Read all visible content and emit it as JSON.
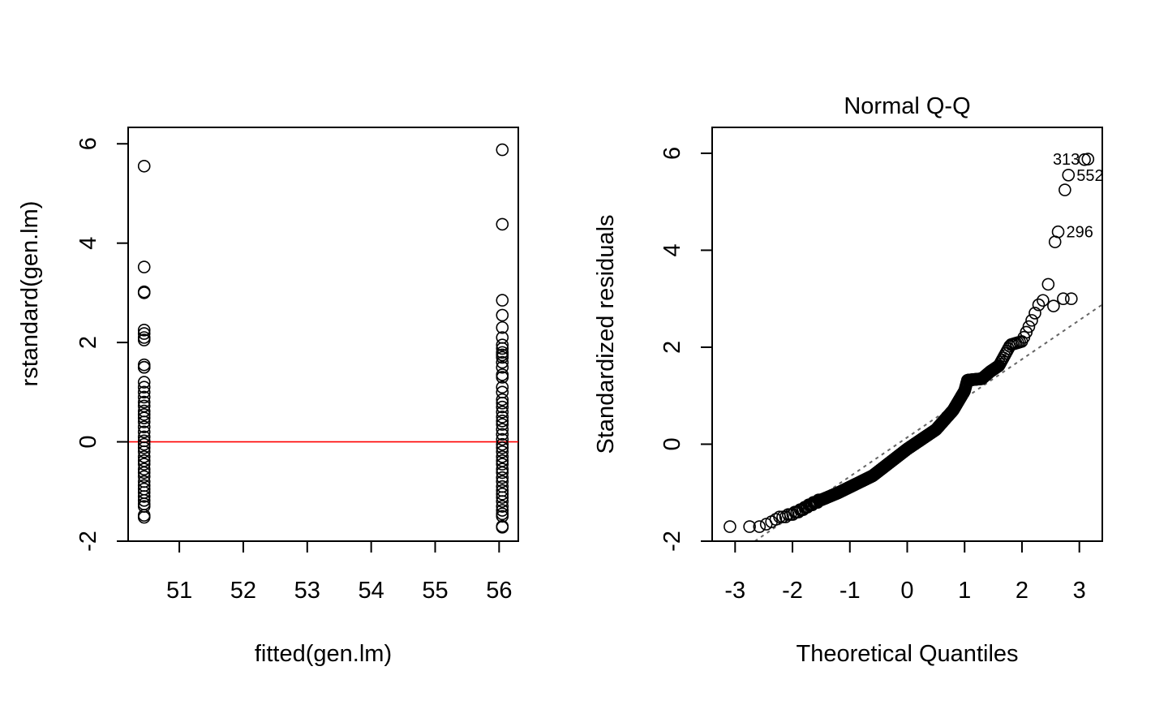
{
  "chart_data": [
    {
      "type": "scatter",
      "title": "",
      "xlabel": "fitted(gen.lm)",
      "ylabel": "rstandard(gen.lm)",
      "xlim": [
        50.2,
        56.3
      ],
      "ylim": [
        -2,
        6.2
      ],
      "xticks": [
        "51",
        "52",
        "53",
        "54",
        "55",
        "56"
      ],
      "yticks": [
        "-2",
        "0",
        "2",
        "4",
        "6"
      ],
      "reference_line": {
        "y": 0,
        "color": "#ff0000"
      },
      "series": [
        {
          "x": 50.45,
          "y": [
            5.55,
            3.52,
            3.02,
            3.0,
            2.25,
            2.18,
            2.1,
            2.05,
            1.55,
            1.5,
            1.5,
            1.2,
            1.1,
            1.0,
            0.9,
            0.8,
            0.72,
            0.62,
            0.55,
            0.48,
            0.4,
            0.3,
            0.2,
            0.1,
            0.02,
            -0.05,
            -0.12,
            -0.2,
            -0.3,
            -0.38,
            -0.45,
            -0.55,
            -0.62,
            -0.7,
            -0.8,
            -0.88,
            -0.95,
            -1.02,
            -1.1,
            -1.18,
            -1.25,
            -1.3,
            -1.48,
            -1.52
          ]
        },
        {
          "x": 56.05,
          "y": [
            5.88,
            4.38,
            2.85,
            2.55,
            2.3,
            2.1,
            1.95,
            1.88,
            1.8,
            1.75,
            1.7,
            1.6,
            1.5,
            1.35,
            1.3,
            1.1,
            1.0,
            0.85,
            0.78,
            0.7,
            0.6,
            0.5,
            0.42,
            0.35,
            0.25,
            0.15,
            0.05,
            -0.05,
            -0.12,
            -0.2,
            -0.3,
            -0.38,
            -0.45,
            -0.55,
            -0.62,
            -0.72,
            -0.8,
            -0.9,
            -0.98,
            -1.05,
            -1.12,
            -1.2,
            -1.3,
            -1.38,
            -1.45,
            -1.5,
            -1.7,
            -1.72
          ]
        }
      ]
    },
    {
      "type": "scatter",
      "title": "Normal Q-Q",
      "xlabel": "Theoretical Quantiles",
      "ylabel": "Standardized residuals",
      "xlim": [
        -3.4,
        3.4
      ],
      "ylim": [
        -2,
        6.4
      ],
      "xticks": [
        "-3",
        "-2",
        "-1",
        "0",
        "1",
        "2",
        "3"
      ],
      "yticks": [
        "-2",
        "0",
        "2",
        "4",
        "6"
      ],
      "qq_line": {
        "x": [
          -3.4,
          3.4
        ],
        "y": [
          -2.6,
          2.88
        ]
      },
      "n_points": 500,
      "anchors": [
        [
          -3.1,
          -1.72
        ],
        [
          -2.8,
          -1.72
        ],
        [
          -2.5,
          -1.68
        ],
        [
          -2.2,
          -1.5
        ],
        [
          -2.0,
          -1.45
        ],
        [
          -1.6,
          -1.2
        ],
        [
          -1.2,
          -1.0
        ],
        [
          -0.6,
          -0.65
        ],
        [
          0.0,
          -0.1
        ],
        [
          0.5,
          0.3
        ],
        [
          0.8,
          0.7
        ],
        [
          1.0,
          1.1
        ],
        [
          1.05,
          1.32
        ],
        [
          1.3,
          1.35
        ],
        [
          1.45,
          1.5
        ],
        [
          1.6,
          1.62
        ],
        [
          1.8,
          2.05
        ],
        [
          2.0,
          2.12
        ],
        [
          2.15,
          2.5
        ],
        [
          2.3,
          2.9
        ],
        [
          2.4,
          3.0
        ],
        [
          2.5,
          3.52
        ],
        [
          2.6,
          4.38
        ],
        [
          2.8,
          5.55
        ],
        [
          3.1,
          5.88
        ]
      ],
      "highlight": [
        {
          "x": 2.86,
          "y": 3.0
        },
        {
          "x": 2.72,
          "y": 3.0
        },
        {
          "x": 2.55,
          "y": 2.85
        }
      ],
      "labeled_points": [
        {
          "x": 3.15,
          "y": 5.88,
          "label": "313",
          "side": "left"
        },
        {
          "x": 2.81,
          "y": 5.55,
          "label": "552",
          "side": "right"
        },
        {
          "x": 2.63,
          "y": 4.38,
          "label": "296",
          "side": "right"
        }
      ]
    }
  ]
}
